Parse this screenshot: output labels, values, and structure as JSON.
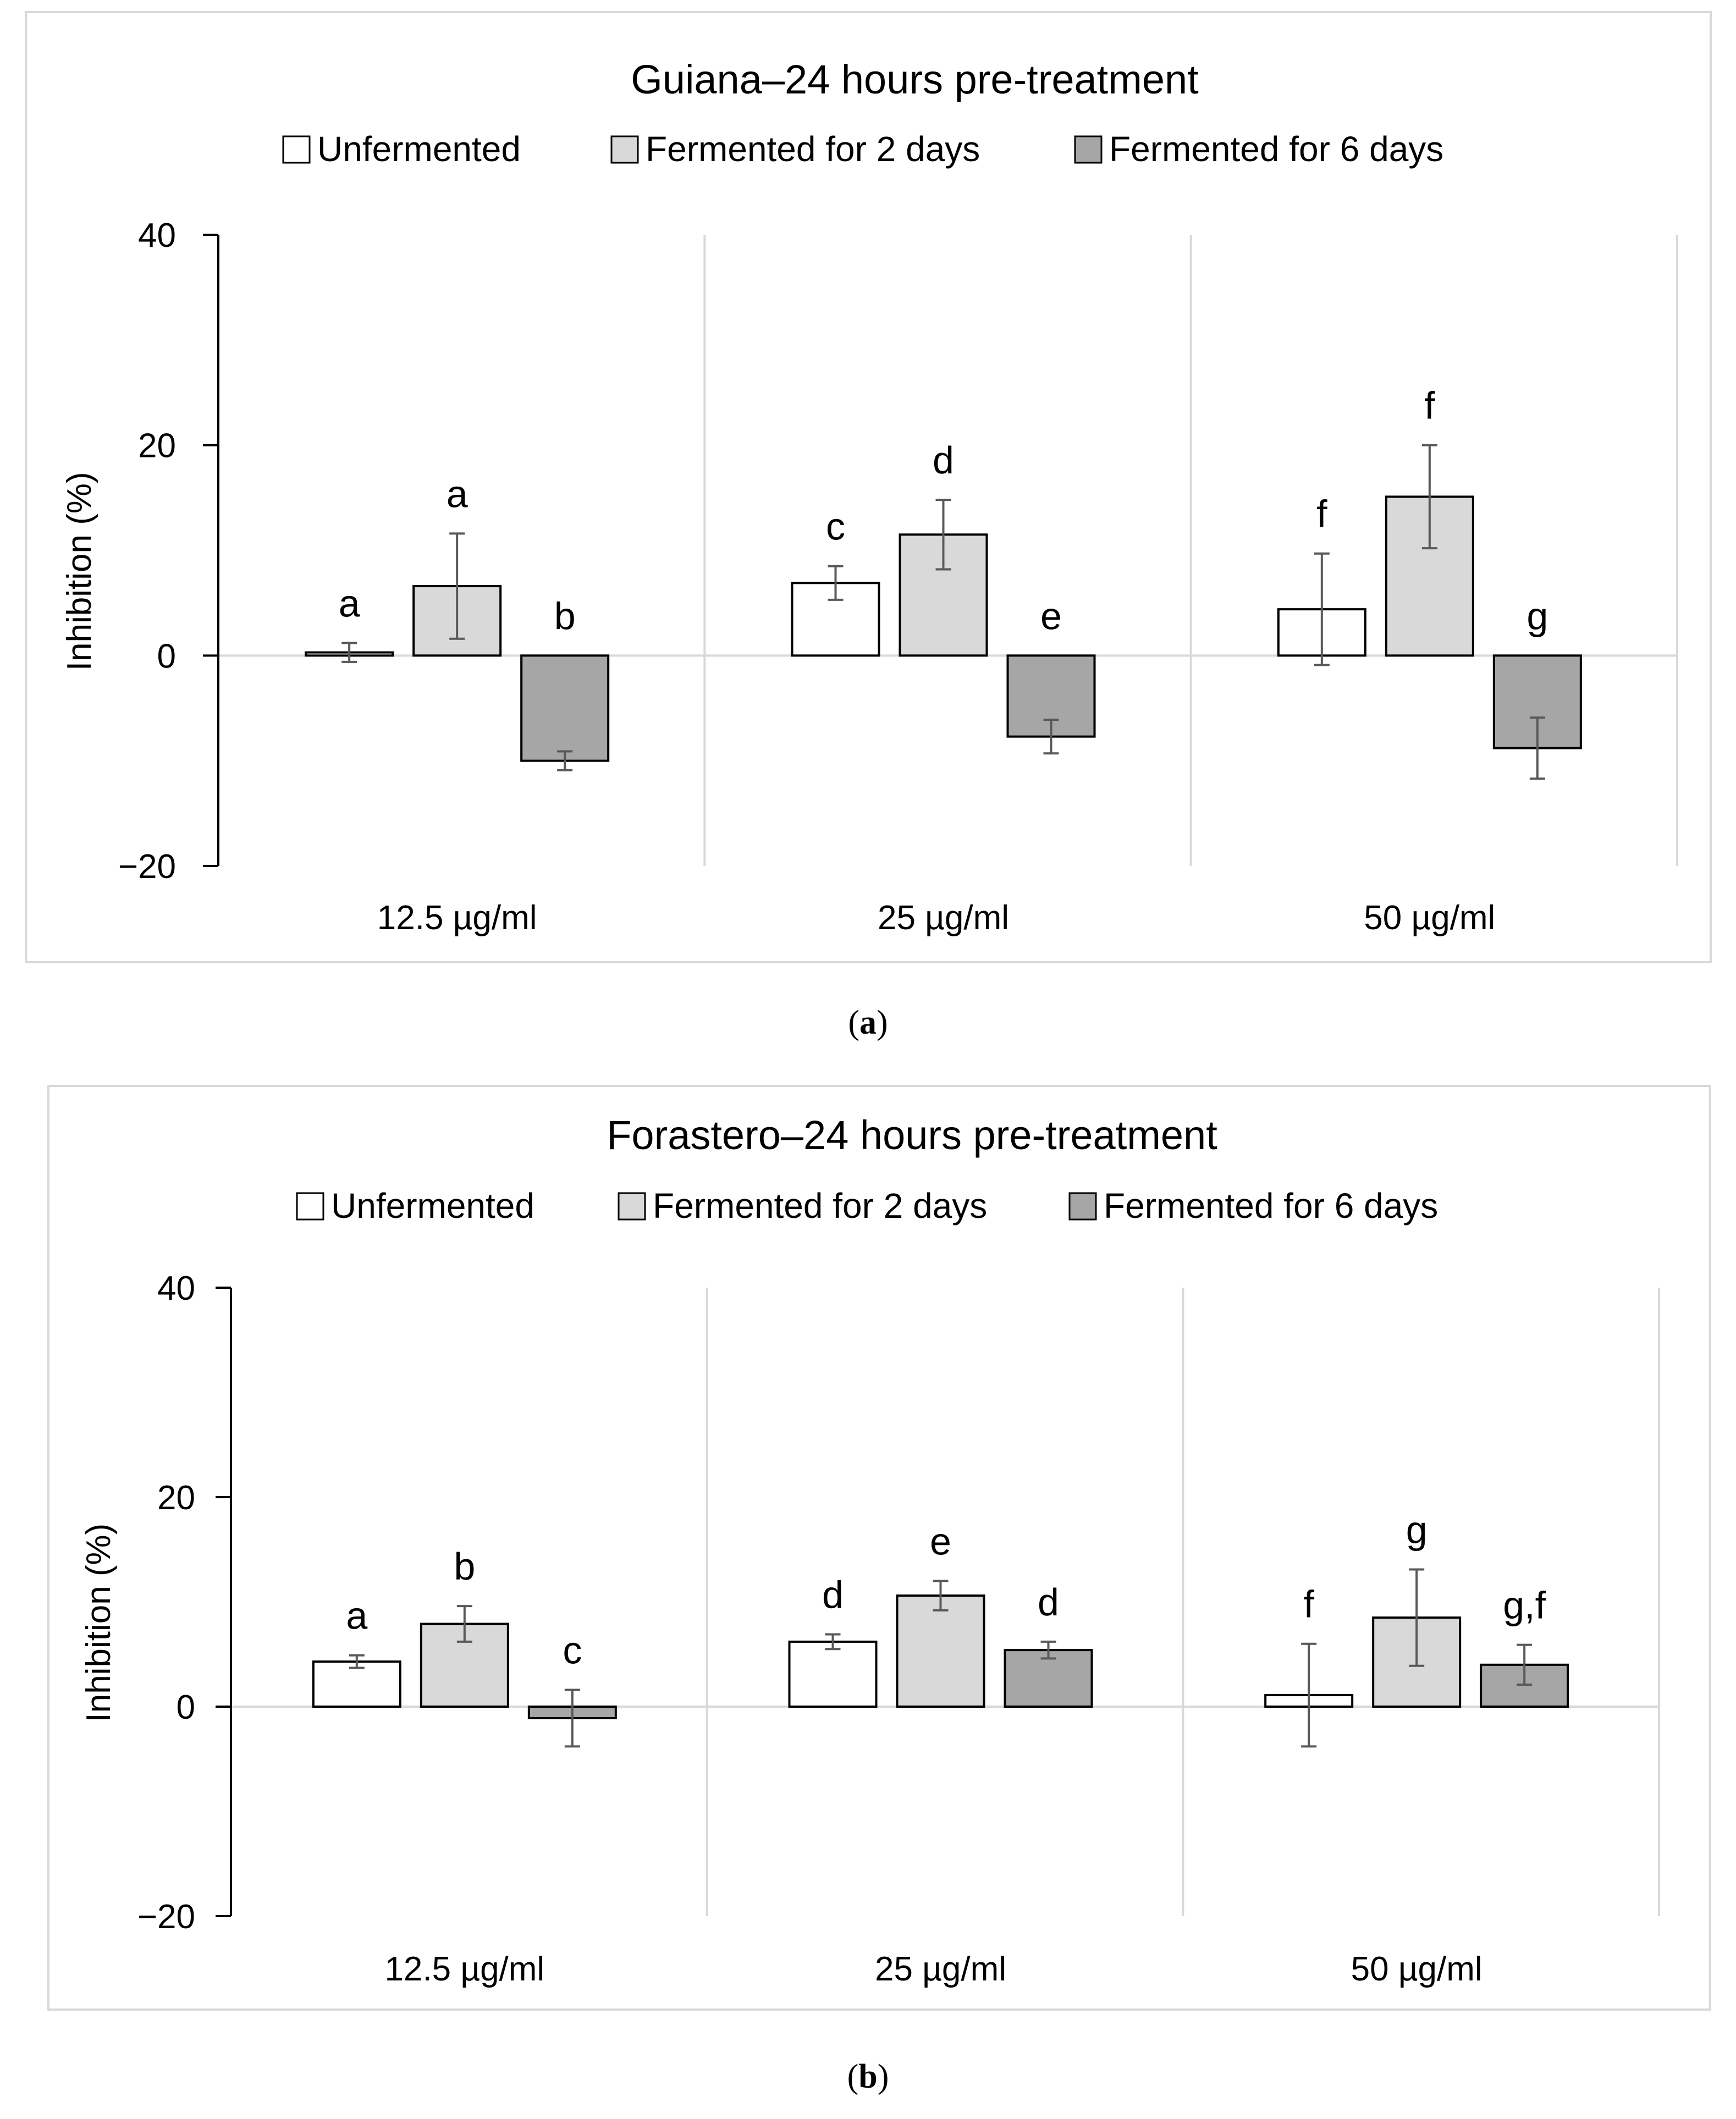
{
  "captions": [
    {
      "open": "(",
      "letter": "a",
      "close": ")"
    },
    {
      "open": "(",
      "letter": "b",
      "close": ")"
    }
  ],
  "colors": {
    "unfermented": "#ffffff",
    "fermented2": "#d9d9d9",
    "fermented6": "#a6a6a6",
    "frame": "#d9d9d9",
    "grid": "#d9d9d9",
    "axis": "#000000",
    "error": "#595959"
  },
  "chart_data": [
    {
      "type": "bar",
      "title": "Guiana–24 hours pre-treatment",
      "ylabel": "Inhibition (%)",
      "xlabel": "",
      "ylim": [
        -20,
        40
      ],
      "yticks": [
        40,
        20,
        0,
        -20
      ],
      "ytick_labels": [
        "40",
        "20",
        "0",
        "−20"
      ],
      "legend_position": "top",
      "categories": [
        "12.5 µg/ml",
        "25 µg/ml",
        "50 µg/ml"
      ],
      "series": [
        {
          "name": "Unfermented",
          "color_key": "unfermented",
          "values": [
            0.3,
            6.9,
            4.4
          ],
          "errors": [
            0.9,
            1.6,
            5.3
          ],
          "letters": [
            "a",
            "c",
            "f"
          ]
        },
        {
          "name": "Fermented for 2 days",
          "color_key": "fermented2",
          "values": [
            6.6,
            11.5,
            15.1
          ],
          "errors": [
            5.0,
            3.3,
            4.9
          ],
          "letters": [
            "a",
            "d",
            "f"
          ]
        },
        {
          "name": "Fermented for 6 days",
          "color_key": "fermented6",
          "values": [
            -10.0,
            -7.7,
            -8.8
          ],
          "errors": [
            0.9,
            1.6,
            2.9
          ],
          "letters": [
            "b",
            "e",
            "g"
          ]
        }
      ]
    },
    {
      "type": "bar",
      "title": "Forastero–24 hours pre-treatment",
      "ylabel": "Inhibition (%)",
      "xlabel": "",
      "ylim": [
        -20,
        40
      ],
      "yticks": [
        40,
        20,
        0,
        -20
      ],
      "ytick_labels": [
        "40",
        "20",
        "0",
        "−20"
      ],
      "legend_position": "top",
      "categories": [
        "12.5 µg/ml",
        "25 µg/ml",
        "50 µg/ml"
      ],
      "series": [
        {
          "name": "Unfermented",
          "color_key": "unfermented",
          "values": [
            4.3,
            6.2,
            1.1
          ],
          "errors": [
            0.6,
            0.7,
            4.9
          ],
          "letters": [
            "a",
            "d",
            "f"
          ]
        },
        {
          "name": "Fermented for 2 days",
          "color_key": "fermented2",
          "values": [
            7.9,
            10.6,
            8.5
          ],
          "errors": [
            1.7,
            1.4,
            4.6
          ],
          "letters": [
            "b",
            "e",
            "g"
          ]
        },
        {
          "name": "Fermented for 6 days",
          "color_key": "fermented6",
          "values": [
            -1.1,
            5.4,
            4.0
          ],
          "errors": [
            2.7,
            0.8,
            1.9
          ],
          "letters": [
            "c",
            "d",
            "g,f"
          ]
        }
      ]
    }
  ]
}
